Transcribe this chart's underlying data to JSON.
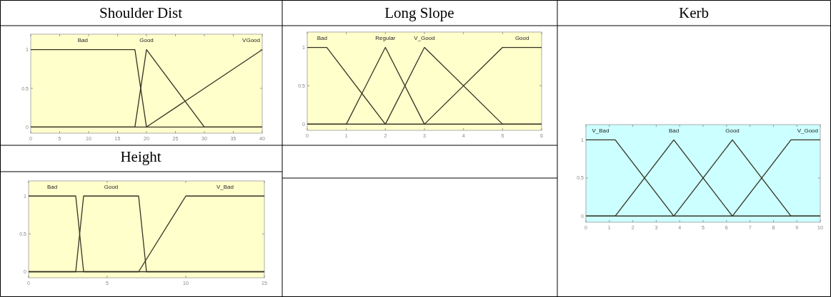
{
  "chart_data": [
    {
      "type": "line",
      "title": "Shoulder Dist",
      "xlim": [
        0,
        40
      ],
      "xticks": [
        0,
        5,
        10,
        15,
        20,
        25,
        30,
        35,
        40
      ],
      "ylim": [
        -0.08,
        1.2
      ],
      "yticks": [
        0,
        0.5,
        1
      ],
      "grid": false,
      "marker": "none",
      "line_style": "solid",
      "series": [
        {
          "name": "Bad",
          "color": "#333322",
          "x": [
            0,
            18,
            20,
            40
          ],
          "values": [
            1,
            1,
            0,
            0
          ]
        },
        {
          "name": "Good",
          "color": "#333322",
          "x": [
            0,
            18,
            20,
            30,
            40
          ],
          "values": [
            0,
            0,
            1,
            0,
            0
          ]
        },
        {
          "name": "VGood",
          "color": "#333322",
          "x": [
            0,
            20,
            40
          ],
          "values": [
            0,
            0,
            1
          ]
        }
      ]
    },
    {
      "type": "line",
      "title": "Long Slope",
      "xlim": [
        0,
        6
      ],
      "xticks": [
        0,
        1,
        2,
        3,
        4,
        5,
        6
      ],
      "ylim": [
        -0.08,
        1.2
      ],
      "yticks": [
        0,
        0.5,
        1
      ],
      "grid": false,
      "marker": "none",
      "line_style": "solid",
      "series": [
        {
          "name": "Bad",
          "color": "#333322",
          "x": [
            0,
            0.5,
            2,
            6
          ],
          "values": [
            1,
            1,
            0,
            0
          ]
        },
        {
          "name": "Regular",
          "color": "#333322",
          "x": [
            0,
            1,
            2,
            3,
            6
          ],
          "values": [
            0,
            0,
            1,
            0,
            0
          ]
        },
        {
          "name": "V_Good",
          "color": "#333322",
          "x": [
            0,
            2,
            3,
            5,
            6
          ],
          "values": [
            0,
            0,
            1,
            0,
            0
          ]
        },
        {
          "name": "Good",
          "color": "#333322",
          "x": [
            0,
            3,
            5,
            6
          ],
          "values": [
            0,
            0,
            1,
            1
          ]
        }
      ]
    },
    {
      "type": "line",
      "title": "Kerb",
      "xlim": [
        0,
        10
      ],
      "xticks": [
        0,
        1,
        2,
        3,
        4,
        5,
        6,
        7,
        8,
        9,
        10
      ],
      "ylim": [
        -0.08,
        1.2
      ],
      "yticks": [
        0,
        0.5,
        1
      ],
      "grid": false,
      "marker": "none",
      "line_style": "solid",
      "series": [
        {
          "name": "V_Bad",
          "color": "#333322",
          "x": [
            0,
            1.25,
            3.75,
            10
          ],
          "values": [
            1,
            1,
            0,
            0
          ]
        },
        {
          "name": "Bad",
          "color": "#333322",
          "x": [
            0,
            1.25,
            3.75,
            6.25,
            10
          ],
          "values": [
            0,
            0,
            1,
            0,
            0
          ]
        },
        {
          "name": "Good",
          "color": "#333322",
          "x": [
            0,
            3.75,
            6.25,
            8.75,
            10
          ],
          "values": [
            0,
            0,
            1,
            0,
            0
          ]
        },
        {
          "name": "V_Good",
          "color": "#333322",
          "x": [
            0,
            6.25,
            8.75,
            10
          ],
          "values": [
            0,
            0,
            1,
            1
          ]
        }
      ]
    },
    {
      "type": "line",
      "title": "Height",
      "xlim": [
        0,
        15
      ],
      "xticks": [
        0,
        5,
        10,
        15
      ],
      "ylim": [
        -0.08,
        1.2
      ],
      "yticks": [
        0,
        0.5,
        1
      ],
      "grid": false,
      "marker": "none",
      "line_style": "solid",
      "series": [
        {
          "name": "Bad",
          "color": "#333322",
          "x": [
            0,
            3,
            3.5,
            15
          ],
          "values": [
            1,
            1,
            0,
            0
          ]
        },
        {
          "name": "Good",
          "color": "#333322",
          "x": [
            0,
            3,
            3.5,
            7,
            7.5,
            15
          ],
          "values": [
            0,
            0,
            1,
            1,
            0,
            0
          ]
        },
        {
          "name": "V_Bad",
          "color": "#333322",
          "x": [
            0,
            7,
            10,
            15
          ],
          "values": [
            0,
            0,
            1,
            1
          ]
        }
      ]
    }
  ]
}
